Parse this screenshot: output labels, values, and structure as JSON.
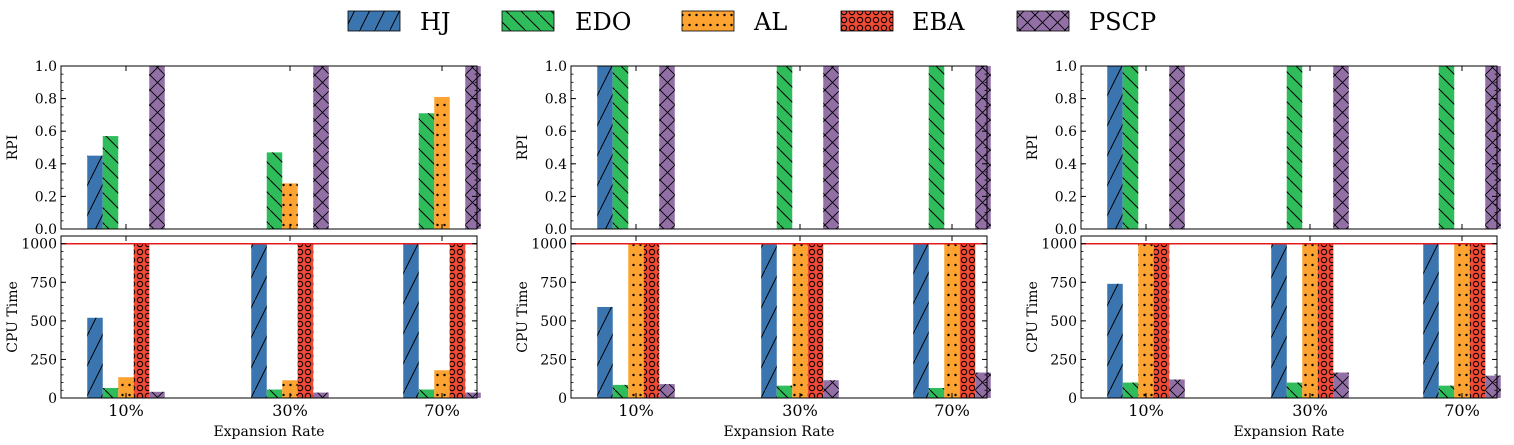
{
  "legend": {
    "placement": "top-center",
    "entries": [
      {
        "name": "HJ",
        "color": "#3b75af",
        "hatch": "forward-slash"
      },
      {
        "name": "EDO",
        "color": "#2fbd5b",
        "hatch": "back-slash"
      },
      {
        "name": "AL",
        "color": "#fca332",
        "hatch": "dots"
      },
      {
        "name": "EBA",
        "color": "#ef4a35",
        "hatch": "circles"
      },
      {
        "name": "PSCP",
        "color": "#9270a6",
        "hatch": "cross"
      }
    ]
  },
  "time_limit_line": {
    "value": 1000,
    "color": "#e41a1c"
  },
  "chart_data": [
    {
      "type": "bar",
      "categories": [
        "10%",
        "30%",
        "70%"
      ],
      "xlabel": "Expansion Rate",
      "top": {
        "ylabel": "RPI",
        "ylim": [
          0,
          1
        ],
        "yticks": [
          0.0,
          0.2,
          0.4,
          0.6,
          0.8,
          1.0
        ],
        "ytick_labels": [
          "0.0",
          "0.2",
          "0.4",
          "0.6",
          "0.8",
          "1.0"
        ],
        "series": [
          {
            "name": "HJ",
            "values": [
              0.45,
              0,
              0
            ]
          },
          {
            "name": "EDO",
            "values": [
              0.57,
              0.47,
              0.71
            ]
          },
          {
            "name": "AL",
            "values": [
              0,
              0.28,
              0.81
            ]
          },
          {
            "name": "EBA",
            "values": [
              0,
              0,
              0
            ]
          },
          {
            "name": "PSCP",
            "values": [
              1.0,
              1.0,
              1.0
            ]
          }
        ]
      },
      "bottom": {
        "ylabel": "CPU Time",
        "ylim": [
          0,
          1050
        ],
        "yticks": [
          0,
          250,
          500,
          750,
          1000
        ],
        "ytick_labels": [
          "0",
          "250",
          "500",
          "750",
          "1000"
        ],
        "series": [
          {
            "name": "HJ",
            "values": [
              520,
              1000,
              1000
            ]
          },
          {
            "name": "EDO",
            "values": [
              65,
              55,
              55
            ]
          },
          {
            "name": "AL",
            "values": [
              135,
              115,
              180
            ]
          },
          {
            "name": "EBA",
            "values": [
              1000,
              1000,
              1000
            ]
          },
          {
            "name": "PSCP",
            "values": [
              40,
              35,
              35
            ]
          }
        ]
      }
    },
    {
      "type": "bar",
      "categories": [
        "10%",
        "30%",
        "70%"
      ],
      "xlabel": "Expansion Rate",
      "top": {
        "ylabel": "RPI",
        "ylim": [
          0,
          1
        ],
        "yticks": [
          0.0,
          0.2,
          0.4,
          0.6,
          0.8,
          1.0
        ],
        "ytick_labels": [
          "0.0",
          "0.2",
          "0.4",
          "0.6",
          "0.8",
          "1.0"
        ],
        "series": [
          {
            "name": "HJ",
            "values": [
              1.0,
              0,
              0
            ]
          },
          {
            "name": "EDO",
            "values": [
              1.0,
              1.0,
              1.0
            ]
          },
          {
            "name": "AL",
            "values": [
              0,
              0,
              0
            ]
          },
          {
            "name": "EBA",
            "values": [
              0,
              0,
              0
            ]
          },
          {
            "name": "PSCP",
            "values": [
              1.0,
              1.0,
              1.0
            ]
          }
        ]
      },
      "bottom": {
        "ylabel": "CPU Time",
        "ylim": [
          0,
          1050
        ],
        "yticks": [
          0,
          250,
          500,
          750,
          1000
        ],
        "ytick_labels": [
          "0",
          "250",
          "500",
          "750",
          "1000"
        ],
        "series": [
          {
            "name": "HJ",
            "values": [
              590,
              1000,
              1000
            ]
          },
          {
            "name": "EDO",
            "values": [
              85,
              80,
              65
            ]
          },
          {
            "name": "AL",
            "values": [
              1000,
              1000,
              1000
            ]
          },
          {
            "name": "EBA",
            "values": [
              1000,
              1000,
              1000
            ]
          },
          {
            "name": "PSCP",
            "values": [
              90,
              115,
              165
            ]
          }
        ]
      }
    },
    {
      "type": "bar",
      "categories": [
        "10%",
        "30%",
        "70%"
      ],
      "xlabel": "Expansion Rate",
      "top": {
        "ylabel": "RPI",
        "ylim": [
          0,
          1
        ],
        "yticks": [
          0.0,
          0.2,
          0.4,
          0.6,
          0.8,
          1.0
        ],
        "ytick_labels": [
          "0.0",
          "0.2",
          "0.4",
          "0.6",
          "0.8",
          "1.0"
        ],
        "series": [
          {
            "name": "HJ",
            "values": [
              1.0,
              0,
              0
            ]
          },
          {
            "name": "EDO",
            "values": [
              1.0,
              1.0,
              1.0
            ]
          },
          {
            "name": "AL",
            "values": [
              0,
              0,
              0
            ]
          },
          {
            "name": "EBA",
            "values": [
              0,
              0,
              0
            ]
          },
          {
            "name": "PSCP",
            "values": [
              1.0,
              1.0,
              1.0
            ]
          }
        ]
      },
      "bottom": {
        "ylabel": "CPU Time",
        "ylim": [
          0,
          1050
        ],
        "yticks": [
          0,
          250,
          500,
          750,
          1000
        ],
        "ytick_labels": [
          "0",
          "250",
          "500",
          "750",
          "1000"
        ],
        "series": [
          {
            "name": "HJ",
            "values": [
              740,
              1000,
              1000
            ]
          },
          {
            "name": "EDO",
            "values": [
              100,
              100,
              80
            ]
          },
          {
            "name": "AL",
            "values": [
              1000,
              1000,
              1000
            ]
          },
          {
            "name": "EBA",
            "values": [
              1000,
              1000,
              1000
            ]
          },
          {
            "name": "PSCP",
            "values": [
              120,
              165,
              145
            ]
          }
        ]
      }
    }
  ]
}
